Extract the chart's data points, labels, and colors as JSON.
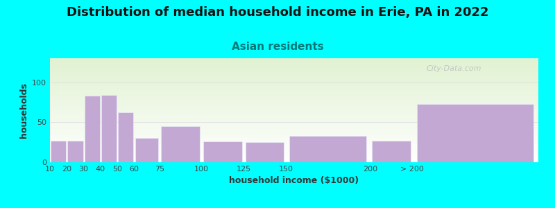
{
  "title": "Distribution of median household income in Erie, PA in 2022",
  "subtitle": "Asian residents",
  "xlabel": "household income ($1000)",
  "ylabel": "households",
  "background_color": "#00FFFF",
  "bar_color": "#c4a8d4",
  "bar_edgecolor": "#e8e8f8",
  "watermark": "City-Data.com",
  "bar_left_edges": [
    10,
    20,
    30,
    40,
    50,
    60,
    75,
    100,
    125,
    150,
    200,
    225
  ],
  "bar_widths": [
    10,
    10,
    10,
    10,
    10,
    15,
    25,
    25,
    25,
    50,
    25,
    75
  ],
  "values": [
    27,
    27,
    83,
    84,
    62,
    30,
    45,
    26,
    25,
    33,
    27,
    73
  ],
  "xtick_positions": [
    10,
    20,
    30,
    40,
    50,
    60,
    75,
    100,
    125,
    150,
    200,
    225
  ],
  "xtick_labels": [
    "10",
    "20",
    "30",
    "40",
    "50",
    "60",
    "75",
    "100",
    "125",
    "150",
    "200",
    "> 200"
  ],
  "yticks": [
    0,
    50,
    100
  ],
  "ylim": [
    0,
    130
  ],
  "xlim": [
    10,
    300
  ],
  "title_fontsize": 13,
  "subtitle_fontsize": 11,
  "axis_label_fontsize": 9,
  "tick_fontsize": 8
}
